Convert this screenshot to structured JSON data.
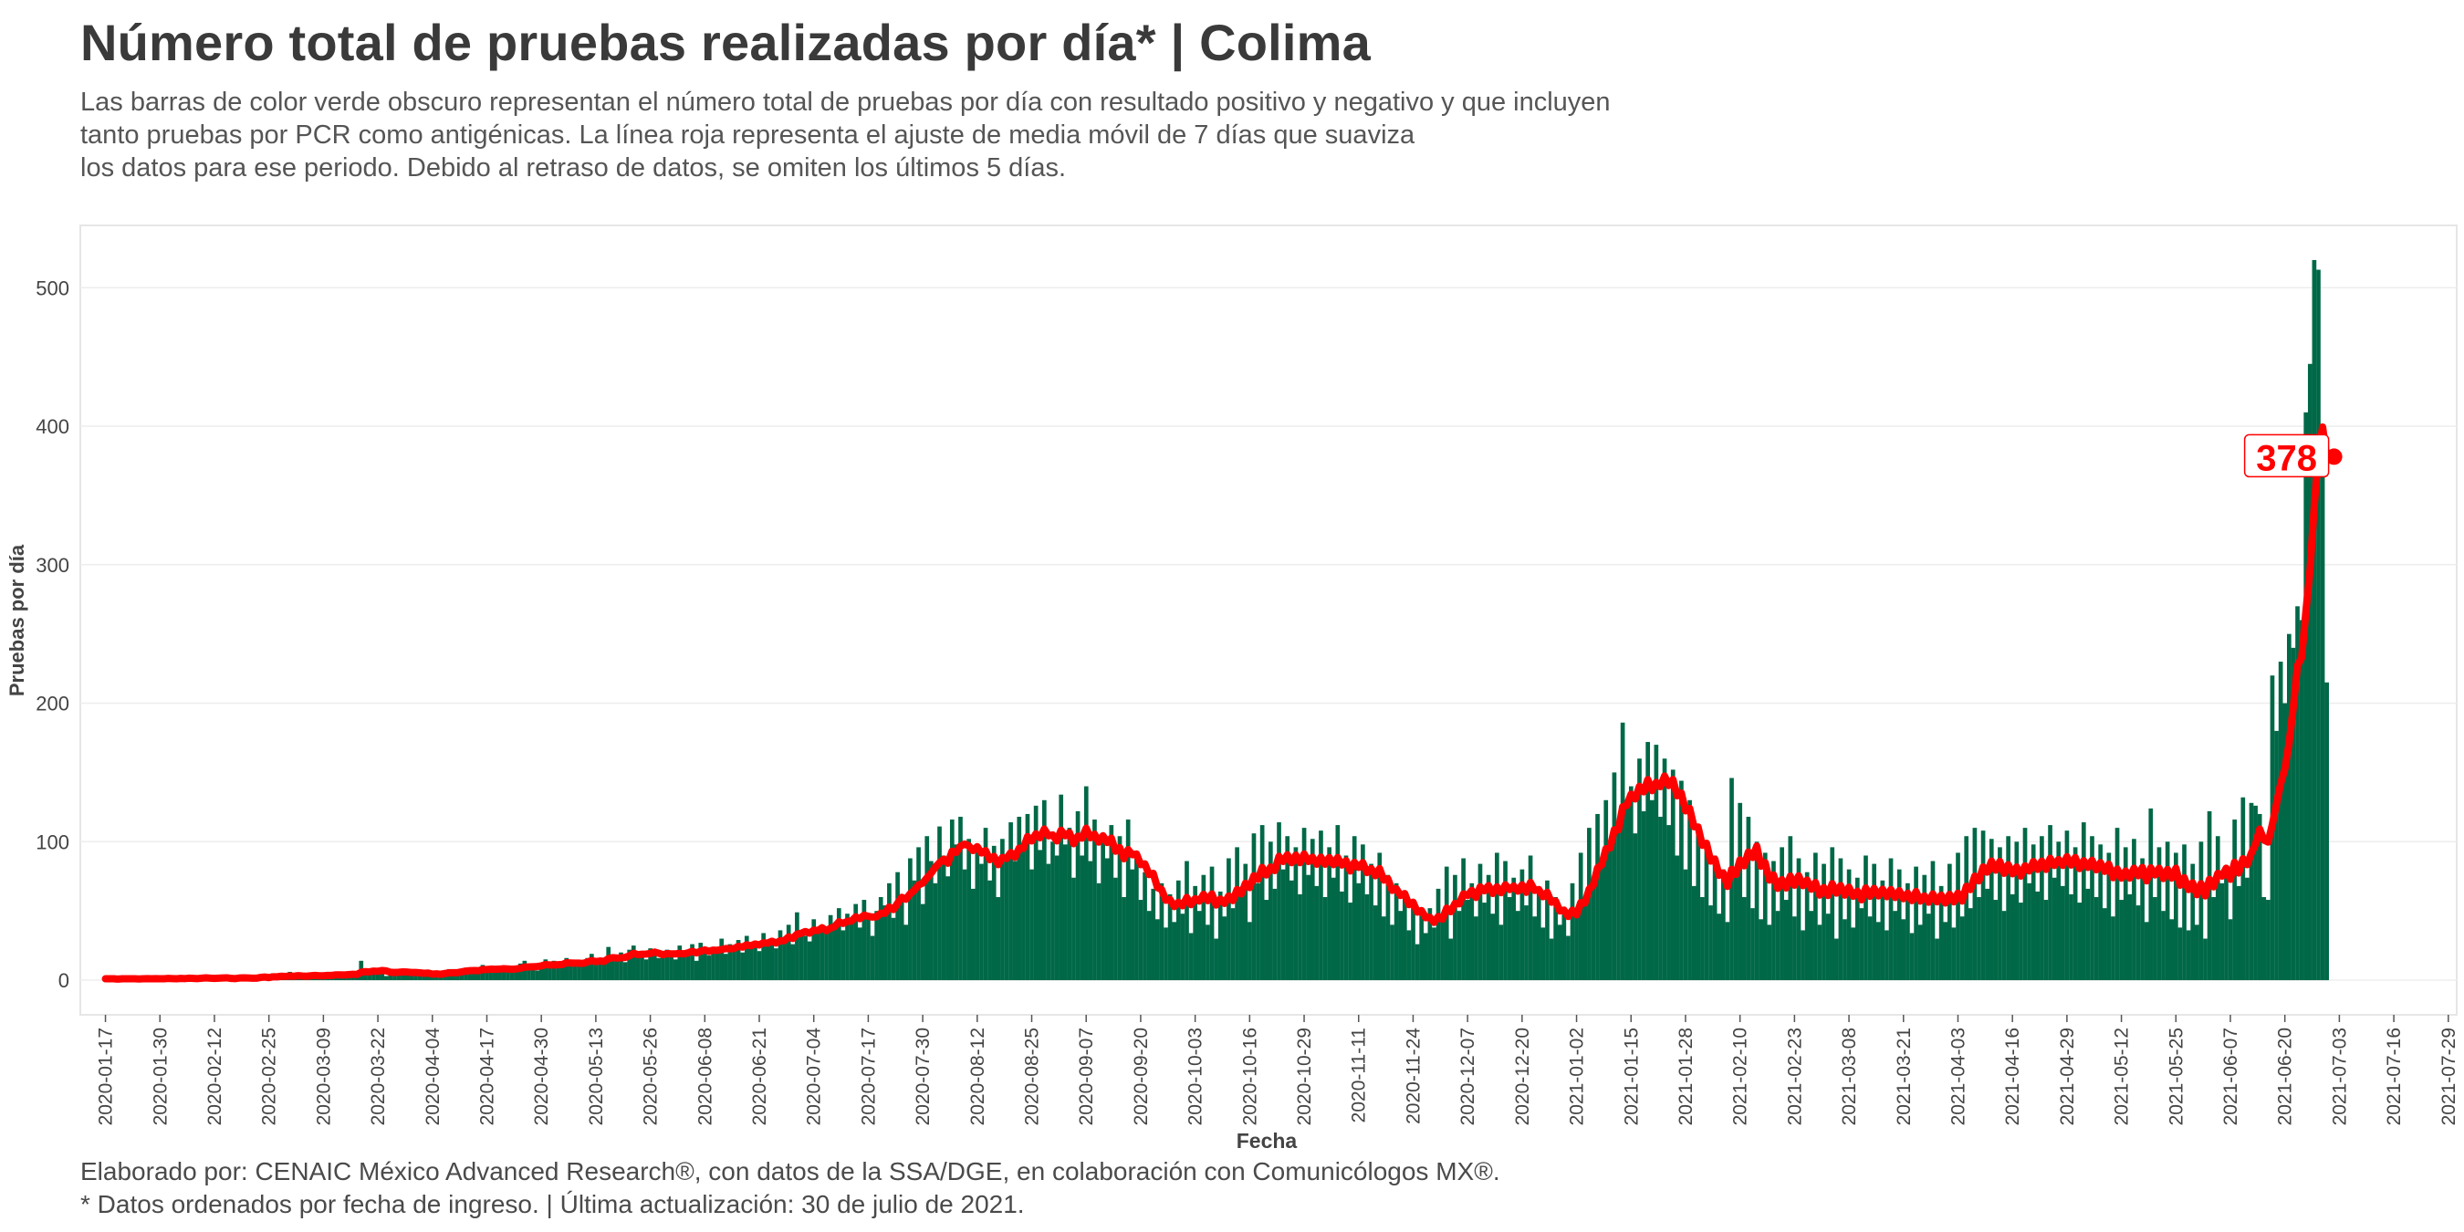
{
  "title": "Número total de pruebas realizadas por día* | Colima",
  "subtitle_lines": [
    "Las barras de color verde obscuro representan el número total de pruebas por día con resultado positivo y negativo y que incluyen",
    "tanto pruebas por PCR como antigénicas. La línea roja representa el ajuste de media móvil de 7 días que suaviza",
    "los datos para ese periodo. Debido al retraso de datos, se omiten los últimos 5 días."
  ],
  "caption_lines": [
    "Elaborado por: CENAIC México Advanced Research®, con datos de la SSA/DGE, en colaboración con Comunicólogos MX®.",
    "* Datos ordenados por fecha de ingreso. | Última actualización: 30 de julio de 2021."
  ],
  "colors": {
    "bars": "#006847",
    "line": "#ff0000",
    "panel_border": "#e6e6e6"
  },
  "chart_data": {
    "type": "bar",
    "xlabel": "Fecha",
    "ylabel": "Pruebas por día",
    "ylim": [
      -25,
      545
    ],
    "yticks": [
      0,
      100,
      200,
      300,
      400,
      500
    ],
    "xlim": [
      "2020-01-11",
      "2021-07-31"
    ],
    "xticks": [
      "2020-01-17",
      "2020-01-30",
      "2020-02-12",
      "2020-02-25",
      "2020-03-09",
      "2020-03-22",
      "2020-04-04",
      "2020-04-17",
      "2020-04-30",
      "2020-05-13",
      "2020-05-26",
      "2020-06-08",
      "2020-06-21",
      "2020-07-04",
      "2020-07-17",
      "2020-07-30",
      "2020-08-12",
      "2020-08-25",
      "2020-09-07",
      "2020-09-20",
      "2020-10-03",
      "2020-10-16",
      "2020-10-29",
      "2020-11-11",
      "2020-11-24",
      "2020-12-07",
      "2020-12-20",
      "2021-01-02",
      "2021-01-15",
      "2021-01-28",
      "2021-02-10",
      "2021-02-23",
      "2021-03-08",
      "2021-03-21",
      "2021-04-03",
      "2021-04-16",
      "2021-04-29",
      "2021-05-12",
      "2021-05-25",
      "2021-06-07",
      "2021-06-20",
      "2021-07-03",
      "2021-07-16",
      "2021-07-29"
    ],
    "start_date": "2020-01-17",
    "bar_values": [
      1,
      1,
      1,
      0,
      2,
      1,
      1,
      1,
      0,
      2,
      1,
      1,
      2,
      0,
      1,
      2,
      1,
      0,
      3,
      1,
      2,
      0,
      1,
      3,
      2,
      1,
      0,
      3,
      1,
      2,
      0,
      1,
      4,
      1,
      2,
      0,
      2,
      4,
      3,
      1,
      5,
      2,
      3,
      1,
      6,
      2,
      4,
      3,
      1,
      5,
      3,
      4,
      2,
      6,
      3,
      4,
      5,
      2,
      6,
      4,
      5,
      14,
      7,
      4,
      6,
      5,
      8,
      3,
      7,
      6,
      5,
      8,
      4,
      6,
      3,
      5,
      4,
      6,
      3,
      5,
      4,
      7,
      8,
      5,
      6,
      7,
      9,
      6,
      8,
      7,
      11,
      6,
      9,
      8,
      7,
      10,
      6,
      9,
      8,
      12,
      14,
      8,
      11,
      7,
      12,
      15,
      10,
      14,
      9,
      12,
      16,
      11,
      14,
      10,
      13,
      16,
      19,
      11,
      14,
      12,
      24,
      18,
      14,
      20,
      13,
      22,
      25,
      17,
      20,
      15,
      23,
      20,
      16,
      18,
      22,
      19,
      15,
      25,
      18,
      21,
      26,
      14,
      27,
      22,
      18,
      24,
      20,
      30,
      19,
      26,
      23,
      29,
      20,
      32,
      25,
      28,
      21,
      34,
      27,
      30,
      23,
      36,
      29,
      40,
      26,
      49,
      34,
      32,
      28,
      44,
      38,
      40,
      34,
      47,
      40,
      52,
      36,
      48,
      42,
      55,
      38,
      58,
      46,
      32,
      50,
      60,
      54,
      70,
      45,
      78,
      62,
      40,
      88,
      72,
      96,
      55,
      104,
      86,
      70,
      111,
      90,
      75,
      116,
      98,
      118,
      80,
      102,
      66,
      95,
      84,
      110,
      72,
      97,
      60,
      102,
      90,
      114,
      86,
      118,
      96,
      120,
      80,
      126,
      94,
      130,
      84,
      100,
      90,
      134,
      98,
      110,
      74,
      122,
      90,
      140,
      86,
      116,
      70,
      106,
      88,
      112,
      74,
      104,
      60,
      116,
      80,
      92,
      58,
      78,
      50,
      66,
      44,
      70,
      38,
      62,
      42,
      72,
      48,
      86,
      34,
      68,
      50,
      76,
      40,
      82,
      30,
      64,
      46,
      88,
      52,
      96,
      60,
      84,
      42,
      106,
      70,
      112,
      58,
      100,
      66,
      114,
      80,
      104,
      72,
      96,
      62,
      110,
      76,
      102,
      68,
      108,
      60,
      96,
      74,
      112,
      64,
      90,
      56,
      104,
      70,
      98,
      62,
      84,
      54,
      92,
      46,
      76,
      40,
      70,
      50,
      64,
      36,
      58,
      26,
      48,
      34,
      52,
      38,
      66,
      44,
      82,
      30,
      76,
      50,
      88,
      58,
      70,
      46,
      84,
      56,
      76,
      48,
      92,
      40,
      86,
      60,
      74,
      50,
      80,
      54,
      90,
      46,
      64,
      38,
      72,
      30,
      60,
      40,
      50,
      32,
      70,
      48,
      92,
      58,
      110,
      70,
      120,
      84,
      130,
      96,
      150,
      110,
      186,
      128,
      140,
      106,
      160,
      122,
      172,
      130,
      170,
      118,
      160,
      112,
      152,
      90,
      144,
      80,
      130,
      68,
      110,
      60,
      100,
      54,
      90,
      48,
      80,
      42,
      146,
      74,
      128,
      60,
      118,
      52,
      100,
      44,
      92,
      40,
      86,
      50,
      96,
      58,
      104,
      46,
      88,
      36,
      78,
      50,
      92,
      40,
      84,
      48,
      96,
      30,
      88,
      44,
      80,
      38,
      74,
      52,
      90,
      46,
      84,
      42,
      72,
      36,
      88,
      50,
      80,
      44,
      70,
      34,
      82,
      40,
      76,
      48,
      86,
      30,
      68,
      42,
      84,
      38,
      92,
      46,
      104,
      52,
      110,
      60,
      108,
      66,
      102,
      58,
      96,
      50,
      104,
      62,
      100,
      56,
      110,
      70,
      98,
      64,
      104,
      58,
      112,
      74,
      100,
      68,
      108,
      62,
      96,
      56,
      114,
      66,
      104,
      60,
      98,
      52,
      92,
      46,
      110,
      58,
      96,
      62,
      102,
      54,
      88,
      42,
      124,
      60,
      96,
      50,
      100,
      44,
      92,
      38,
      98,
      36,
      84,
      40,
      100,
      30,
      122,
      60,
      104,
      70,
      80,
      44,
      116,
      68,
      132,
      74,
      128,
      126,
      120,
      60,
      58,
      220,
      180,
      230,
      200,
      250,
      240,
      270,
      260,
      410,
      445,
      520,
      513,
      378,
      215
    ],
    "moving_avg_last_label": "378"
  }
}
